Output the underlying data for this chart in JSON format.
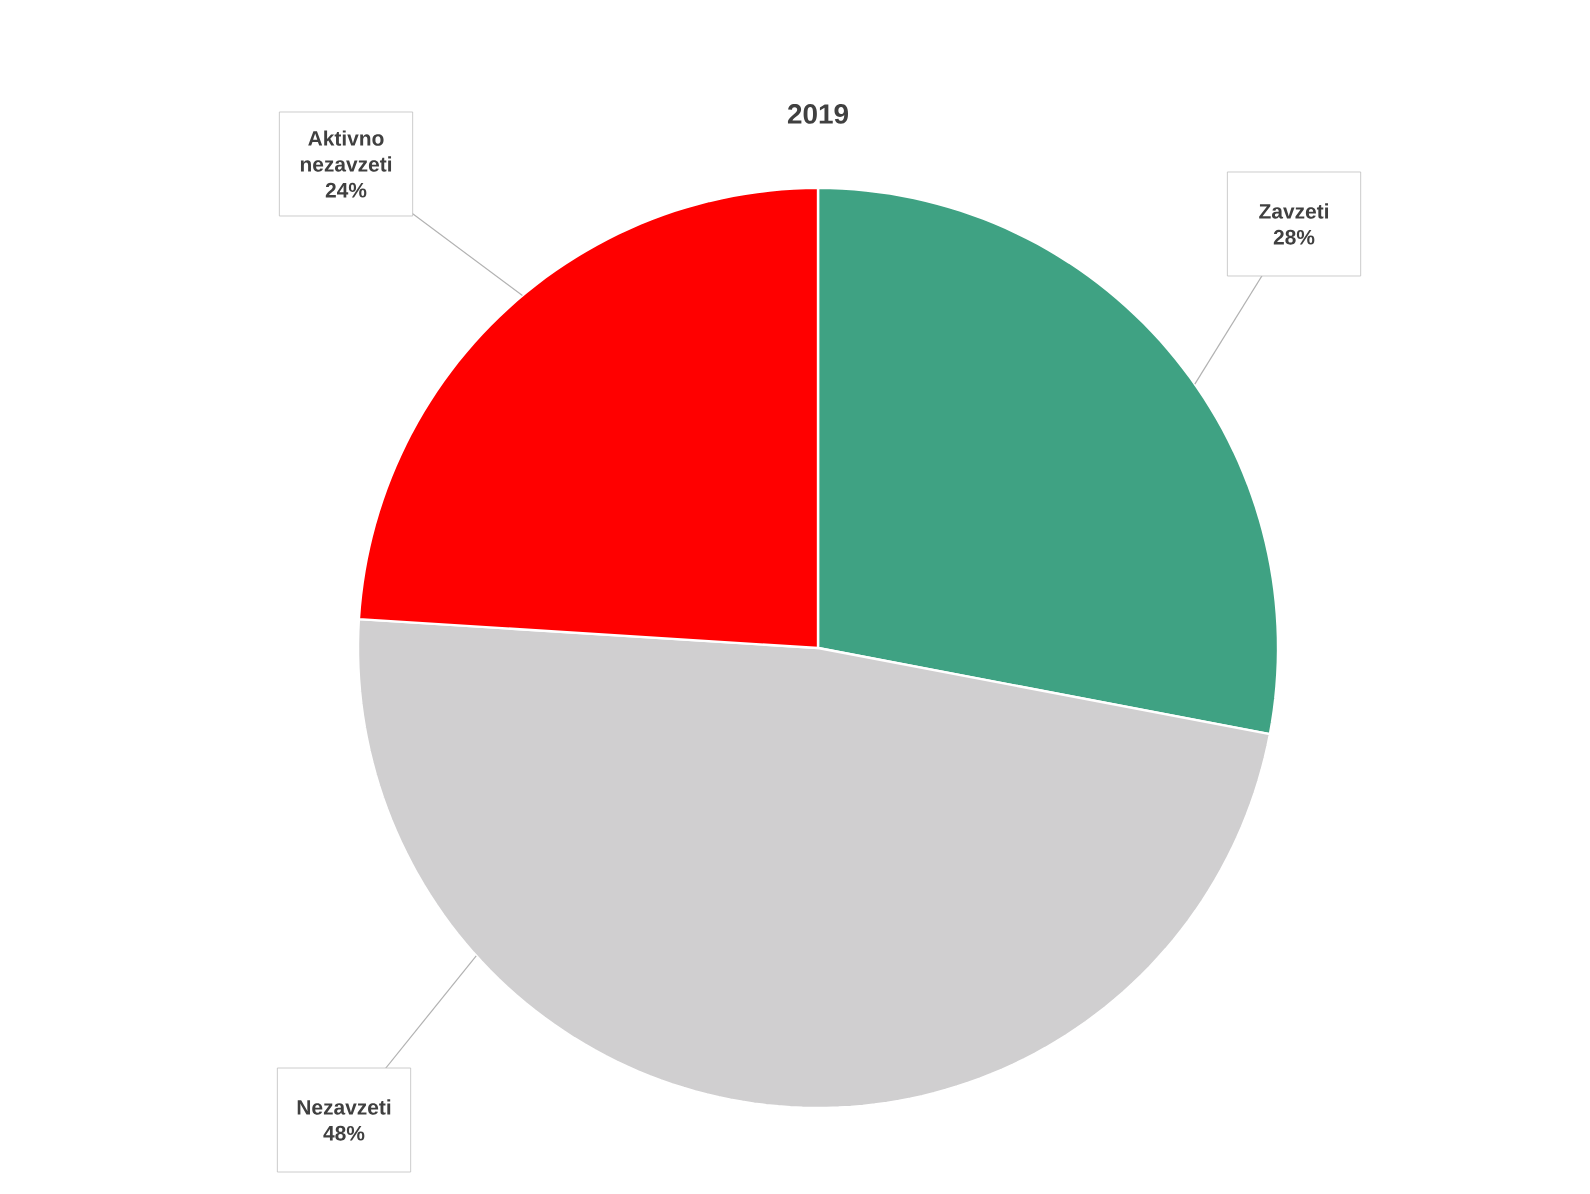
{
  "chart_data": {
    "type": "pie",
    "title": "2019",
    "categories": [
      "Zavzeti",
      "Nezavzeti",
      "Aktivno nezavzeti"
    ],
    "values": [
      28,
      48,
      24
    ],
    "value_labels": [
      "28%",
      "48%",
      "24%"
    ],
    "colors": [
      "#3fa283",
      "#d0cfd0",
      "#ff0000"
    ]
  }
}
